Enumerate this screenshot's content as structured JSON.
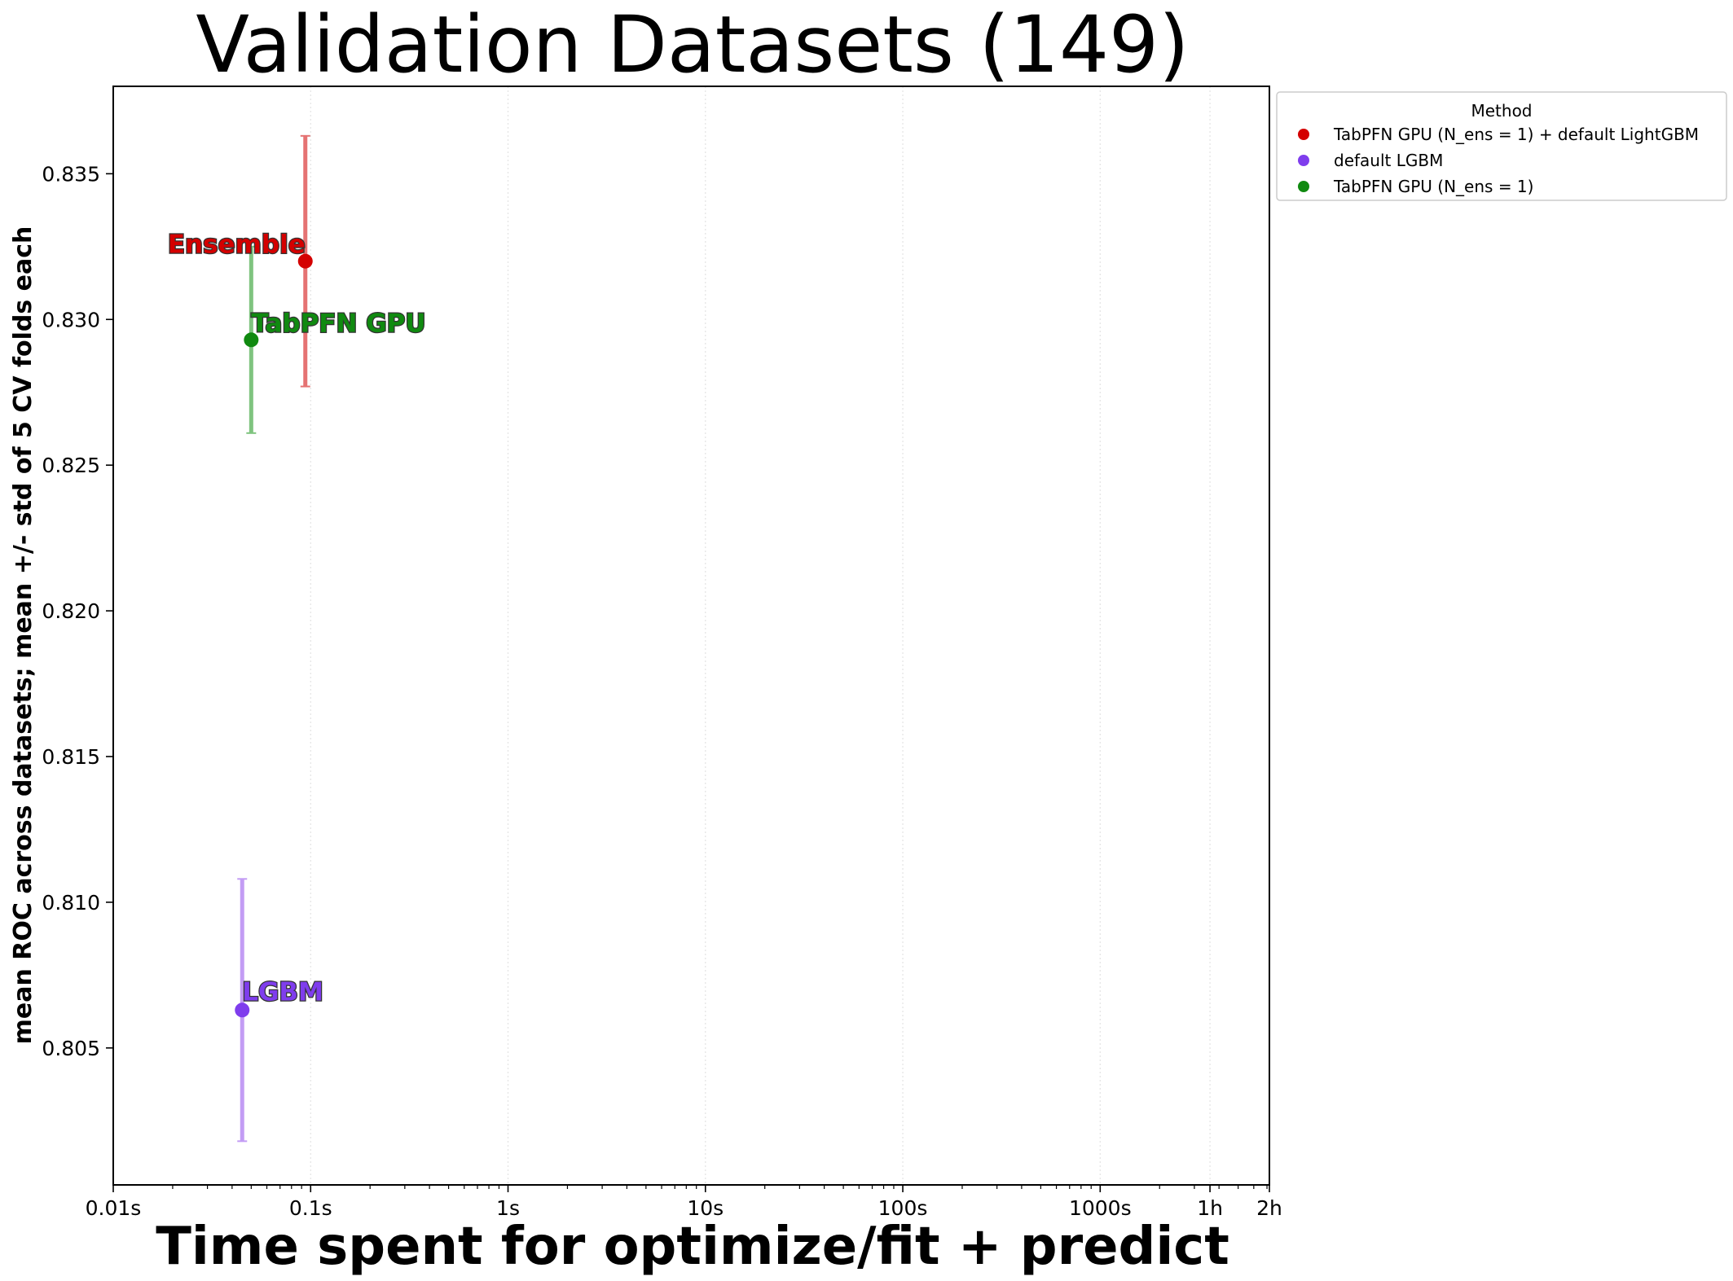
{
  "chart_data": {
    "type": "scatter",
    "title": "Validation Datasets (149)",
    "xlabel": "Time spent for optimize/fit + predict",
    "ylabel": "mean ROC across datasets; mean +/- std of 5 CV folds each",
    "xscale": "log",
    "xlim_seconds": [
      0.01,
      7200
    ],
    "ylim": [
      0.8003,
      0.838
    ],
    "x_ticks": [
      {
        "value": 0.01,
        "label": "0.01s"
      },
      {
        "value": 0.1,
        "label": "0.1s"
      },
      {
        "value": 1,
        "label": "1s"
      },
      {
        "value": 10,
        "label": "10s"
      },
      {
        "value": 100,
        "label": "100s"
      },
      {
        "value": 1000,
        "label": "1000s"
      },
      {
        "value": 3600,
        "label": "1h"
      },
      {
        "value": 7200,
        "label": "2h"
      }
    ],
    "y_ticks": [
      {
        "value": 0.805,
        "label": "0.805"
      },
      {
        "value": 0.81,
        "label": "0.810"
      },
      {
        "value": 0.815,
        "label": "0.815"
      },
      {
        "value": 0.82,
        "label": "0.820"
      },
      {
        "value": 0.825,
        "label": "0.825"
      },
      {
        "value": 0.83,
        "label": "0.830"
      },
      {
        "value": 0.835,
        "label": "0.835"
      }
    ],
    "grid": "vertical dotted",
    "legend": {
      "title": "Method",
      "placement": "outside top-right"
    },
    "series": [
      {
        "name": "TabPFN GPU (N_ens =  1) + default LightGBM",
        "color": "#d40000",
        "error_color": "#e57373",
        "x": 0.094,
        "y": 0.832,
        "y_low": 0.8277,
        "y_high": 0.8363,
        "annotation": "Ensemble"
      },
      {
        "name": "default LGBM",
        "color": "#7f3ded",
        "error_color": "#c39cf4",
        "x": 0.045,
        "y": 0.8063,
        "y_low": 0.8018,
        "y_high": 0.8108,
        "annotation": "LGBM"
      },
      {
        "name": "TabPFN GPU (N_ens =  1)",
        "color": "#108a10",
        "error_color": "#7fc47f",
        "x": 0.05,
        "y": 0.8293,
        "y_low": 0.8261,
        "y_high": 0.8325,
        "annotation": "TabPFN GPU"
      }
    ]
  }
}
